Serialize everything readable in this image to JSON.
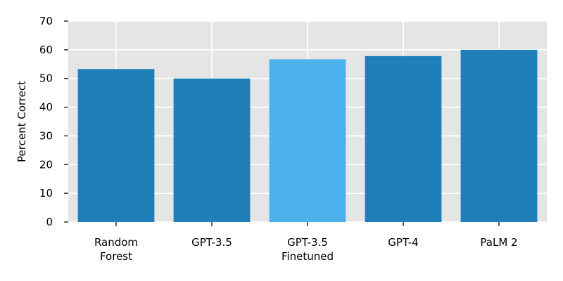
{
  "chart_data": {
    "type": "bar",
    "ylabel": "Percent Correct",
    "xlabel": "",
    "ylim": [
      0,
      70
    ],
    "yticks": [
      0,
      10,
      20,
      30,
      40,
      50,
      60,
      70
    ],
    "grid": true,
    "categories": [
      [
        "Random",
        "Forest"
      ],
      [
        "GPT-3.5"
      ],
      [
        "GPT-3.5",
        "Finetuned"
      ],
      [
        "GPT-4"
      ],
      [
        "PaLM 2"
      ]
    ],
    "values": [
      53.3,
      50.0,
      56.7,
      57.8,
      60.0
    ],
    "bar_colors": [
      "#1f7fb8",
      "#1f7fb8",
      "#4db1ec",
      "#1f7fb8",
      "#1f7fb8"
    ],
    "background_color": "#e5e5e5",
    "grid_color": "#ffffff"
  }
}
